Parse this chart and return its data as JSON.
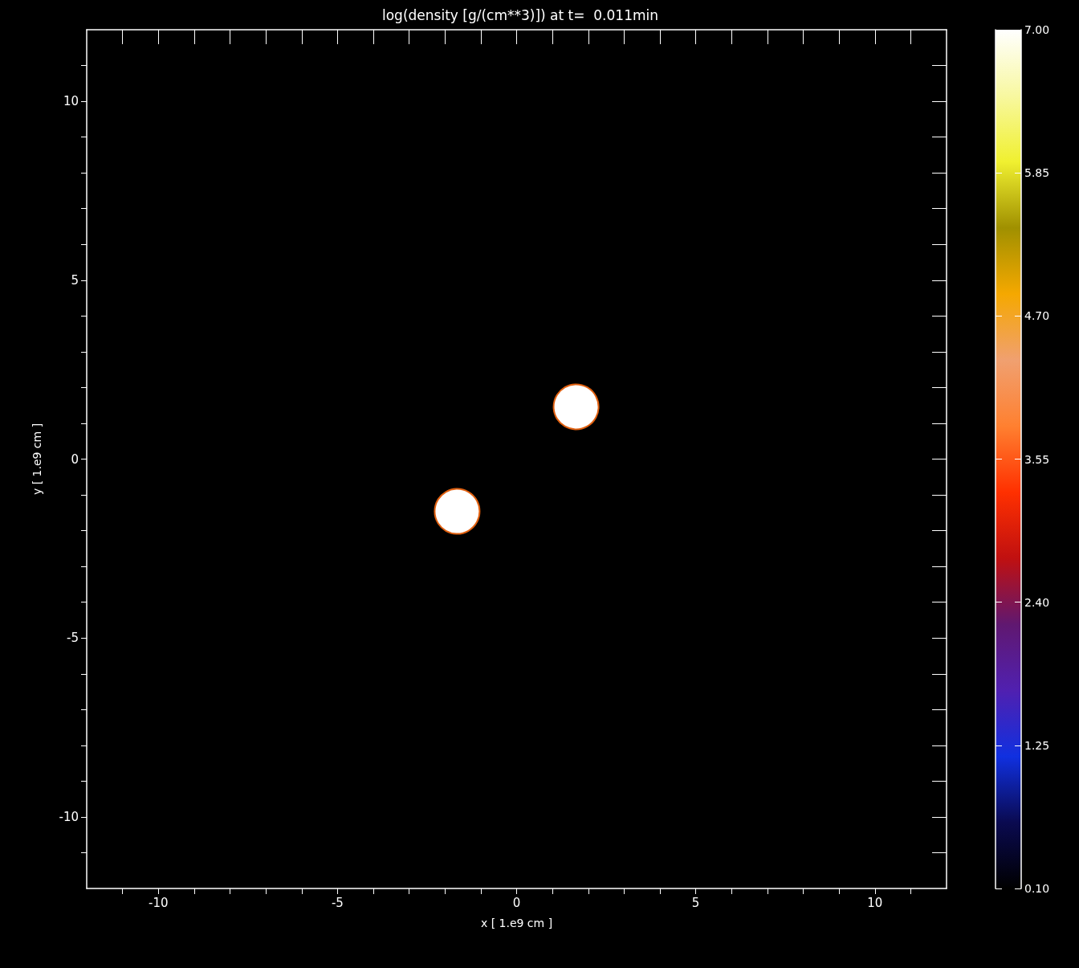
{
  "chart_data": {
    "type": "scatter",
    "title": "log(density [g/(cm**3)]) at t=  0.011min",
    "xlabel": "x [ 1.e9 cm ]",
    "ylabel": "y [ 1.e9 cm ]",
    "series": [
      {
        "x": [
          -1.66,
          1.66
        ],
        "values": [
          -1.46,
          1.46
        ],
        "cvalues": [
          7.0,
          7.0
        ]
      }
    ],
    "marker": "circle",
    "xlim": [
      -12,
      12
    ],
    "ylim": [
      -12,
      12
    ],
    "xticks": [
      {
        "value": -11,
        "label": null
      },
      -10,
      {
        "value": -9,
        "label": null
      },
      {
        "value": -8,
        "label": null
      },
      {
        "value": -7,
        "label": null
      },
      {
        "value": -6,
        "label": null
      },
      -5,
      {
        "value": -4,
        "label": null
      },
      {
        "value": -3,
        "label": null
      },
      {
        "value": -2,
        "label": null
      },
      {
        "value": -1,
        "label": null
      },
      0,
      {
        "value": 1,
        "label": null
      },
      {
        "value": 2,
        "label": null
      },
      {
        "value": 3,
        "label": null
      },
      {
        "value": 4,
        "label": null
      },
      5,
      {
        "value": 6,
        "label": null
      },
      {
        "value": 7,
        "label": null
      },
      {
        "value": 8,
        "label": null
      },
      {
        "value": 9,
        "label": null
      },
      10,
      {
        "value": 11,
        "label": null
      }
    ],
    "yticks": [
      {
        "value": -11,
        "label": null
      },
      -10,
      {
        "value": -9,
        "label": null
      },
      {
        "value": -8,
        "label": null
      },
      {
        "value": -7,
        "label": null
      },
      {
        "value": -6,
        "label": null
      },
      -5,
      {
        "value": -4,
        "label": null
      },
      {
        "value": -3,
        "label": null
      },
      {
        "value": -2,
        "label": null
      },
      {
        "value": -1,
        "label": null
      },
      0,
      {
        "value": 1,
        "label": null
      },
      {
        "value": 2,
        "label": null
      },
      {
        "value": 3,
        "label": null
      },
      {
        "value": 4,
        "label": null
      },
      5,
      {
        "value": 6,
        "label": null
      },
      {
        "value": 7,
        "label": null
      },
      {
        "value": 8,
        "label": null
      },
      {
        "value": 9,
        "label": null
      },
      10,
      {
        "value": 11,
        "label": null
      }
    ],
    "clim": [
      0.1,
      7.0
    ],
    "cticks": [
      {
        "value": 0.1,
        "label": "0.10"
      },
      {
        "value": 1.25,
        "label": "1.25"
      },
      {
        "value": 2.4,
        "label": "2.40"
      },
      {
        "value": 3.55,
        "label": "3.55"
      },
      {
        "value": 4.7,
        "label": "4.70"
      },
      {
        "value": 5.85,
        "label": "5.85"
      },
      {
        "value": 7.0,
        "label": "7.00"
      }
    ],
    "grid": false
  }
}
